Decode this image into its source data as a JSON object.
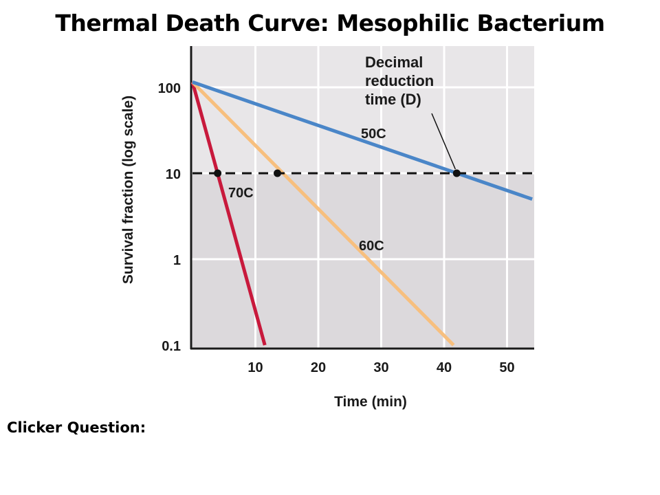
{
  "slide": {
    "title": "Thermal Death Curve: Mesophilic Bacterium",
    "footer": "Clicker Question:"
  },
  "chart_data": {
    "type": "line",
    "title": "",
    "xlabel": "Time (min)",
    "ylabel": "Survival fraction (log scale)",
    "y_scale": "log",
    "xlim": [
      0,
      53
    ],
    "ylim": [
      0.1,
      250
    ],
    "x_ticks": [
      10,
      20,
      30,
      40,
      50
    ],
    "y_ticks": [
      100,
      10,
      1,
      0.1
    ],
    "y_tick_labels": [
      "100",
      "10",
      "1",
      "0.1"
    ],
    "grid": true,
    "series": [
      {
        "name": "70C",
        "color": "#c8193c",
        "x": [
          0,
          11.5
        ],
        "y": [
          115,
          0.1
        ]
      },
      {
        "name": "60C",
        "color": "#f7bf7e",
        "x": [
          0,
          41.5
        ],
        "y": [
          115,
          0.1
        ]
      },
      {
        "name": "50C",
        "color": "#4a86c8",
        "x": [
          0,
          54
        ],
        "y": [
          115,
          5
        ]
      }
    ],
    "reference_line": {
      "y": 10,
      "style": "dashed"
    },
    "points": [
      {
        "x": 4,
        "y": 10
      },
      {
        "x": 13.5,
        "y": 10
      },
      {
        "x": 42,
        "y": 10
      }
    ],
    "annotations": [
      {
        "text_lines": [
          "Decimal",
          "reduction",
          "time (D)"
        ],
        "points_to": {
          "x": 42,
          "y": 10
        }
      }
    ]
  }
}
